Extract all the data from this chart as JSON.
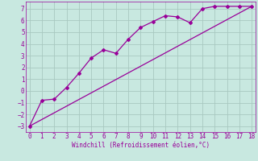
{
  "line1_x": [
    0,
    1,
    2,
    3,
    4,
    5,
    6,
    7,
    8,
    9,
    10,
    11,
    12,
    13,
    14,
    15,
    16,
    17,
    18
  ],
  "line1_y": [
    -3.0,
    -0.8,
    -0.7,
    0.3,
    1.5,
    2.8,
    3.5,
    3.2,
    4.4,
    5.4,
    5.9,
    6.4,
    6.3,
    5.8,
    7.0,
    7.2,
    7.2,
    7.2,
    7.2
  ],
  "line2_x": [
    0,
    18
  ],
  "line2_y": [
    -3.0,
    7.2
  ],
  "line_color": "#990099",
  "bg_color": "#c8e8e0",
  "grid_color": "#a8c8c0",
  "xlabel": "Windchill (Refroidissement éolien,°C)",
  "ylim": [
    -3.5,
    7.6
  ],
  "xlim": [
    -0.3,
    18.3
  ],
  "yticks": [
    -3,
    -2,
    -1,
    0,
    1,
    2,
    3,
    4,
    5,
    6,
    7
  ],
  "xticks": [
    0,
    1,
    2,
    3,
    4,
    5,
    6,
    7,
    8,
    9,
    10,
    11,
    12,
    13,
    14,
    15,
    16,
    17,
    18
  ]
}
